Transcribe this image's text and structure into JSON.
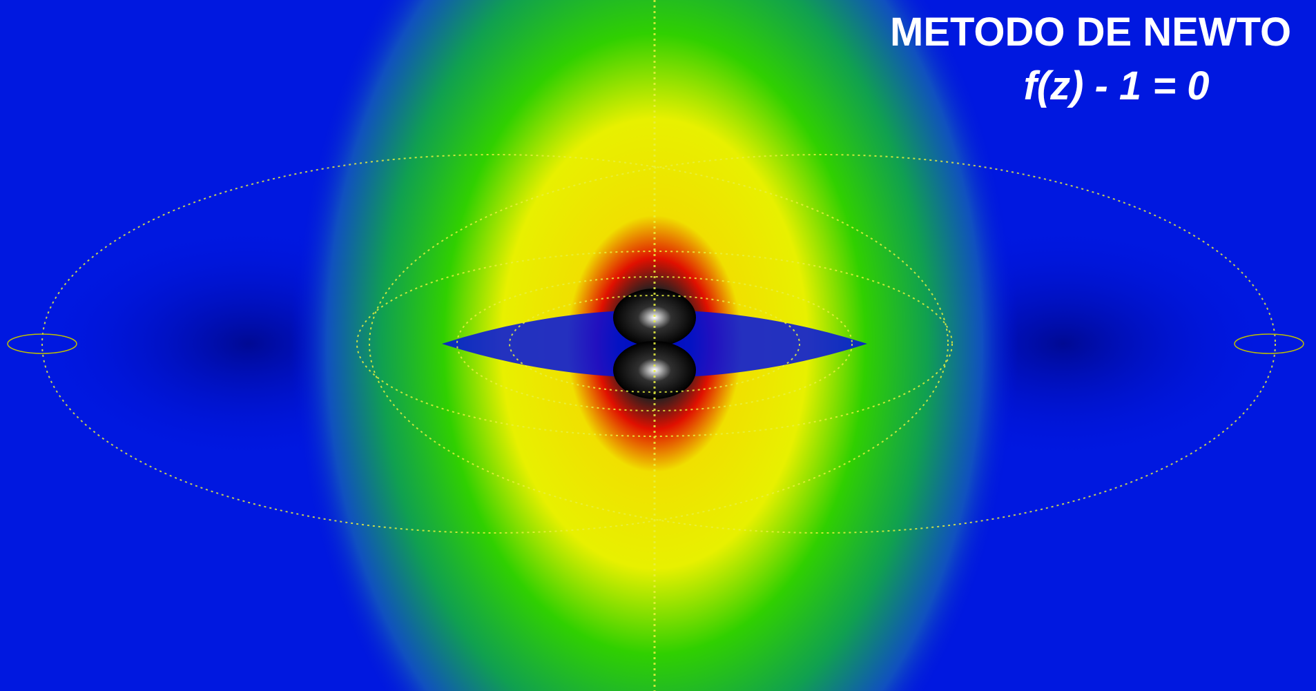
{
  "title": "METODO DE NEWTO",
  "subtitle": "f(z) - 1 = 0"
}
